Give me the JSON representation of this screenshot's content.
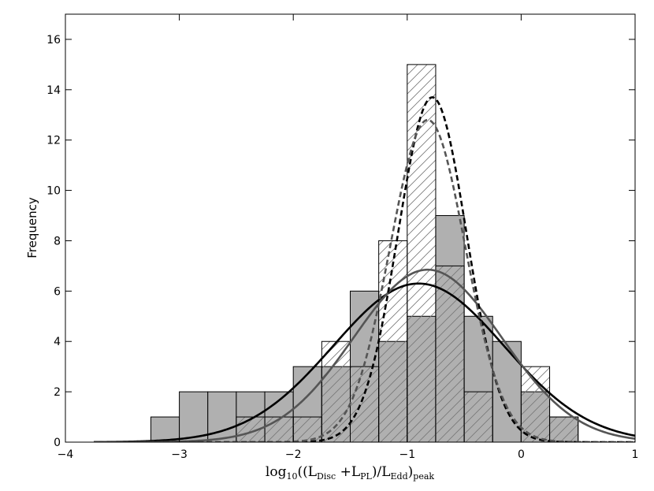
{
  "chart_data": {
    "type": "bar",
    "ylabel": "Frequency",
    "xlabel": {
      "prefix": "log",
      "prefix_sub": "10",
      "open": "((L",
      "sub1": "Disc",
      "plus": " +L",
      "sub2": "PL",
      "slash": ")/L",
      "sub3": "Edd",
      "close": ")",
      "sub4": "peak"
    },
    "xlim": [
      -4,
      1
    ],
    "ylim": [
      0,
      17
    ],
    "xticks": [
      "−4",
      "−3",
      "−2",
      "−1",
      "0",
      "1"
    ],
    "yticks": [
      "0",
      "2",
      "4",
      "6",
      "8",
      "10",
      "12",
      "14",
      "16"
    ],
    "grid": false,
    "legend": "none",
    "bin_edges": [
      -3.25,
      -3.0,
      -2.75,
      -2.5,
      -2.25,
      -2.0,
      -1.75,
      -1.5,
      -1.25,
      -1.0,
      -0.75,
      -0.5,
      -0.25,
      0.0,
      0.25,
      0.5
    ],
    "series": [
      {
        "style": "filled-gray",
        "color": "#b0b0b0",
        "values": [
          1,
          2,
          2,
          2,
          2,
          3,
          3,
          6,
          4,
          5,
          9,
          5,
          4,
          2,
          1
        ]
      },
      {
        "style": "hatched-outline",
        "color": "#000000",
        "values": [
          0,
          0,
          0,
          1,
          1,
          1,
          4,
          3,
          8,
          15,
          7,
          2,
          0,
          3,
          1
        ]
      }
    ],
    "curves": [
      {
        "style": "solid",
        "color": "#000000",
        "mu": -0.9,
        "sigma": 0.75,
        "amp": 6.3
      },
      {
        "style": "solid",
        "color": "#555555",
        "mu": -0.82,
        "sigma": 0.65,
        "amp": 6.85
      },
      {
        "style": "dashed",
        "color": "#000000",
        "mu": -0.78,
        "sigma": 0.3,
        "amp": 13.7
      },
      {
        "style": "dashed",
        "color": "#555555",
        "mu": -0.82,
        "sigma": 0.33,
        "amp": 12.8
      }
    ]
  }
}
